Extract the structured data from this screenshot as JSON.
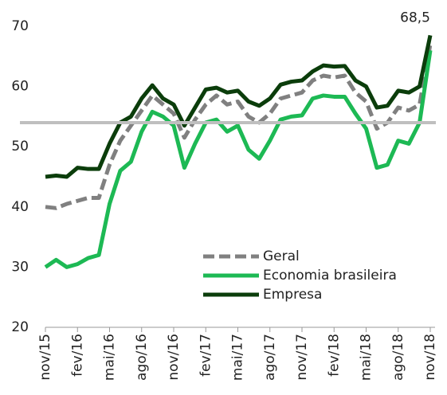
{
  "chart_data": {
    "type": "line",
    "categories": [
      "nov/15",
      null,
      null,
      "fev/16",
      null,
      null,
      "mai/16",
      null,
      null,
      "ago/16",
      null,
      null,
      "nov/16",
      null,
      null,
      "fev/17",
      null,
      null,
      "mai/17",
      null,
      null,
      "ago/17",
      null,
      null,
      "nov/17",
      null,
      null,
      "fev/18",
      null,
      null,
      "mai/18",
      null,
      null,
      "ago/18",
      null,
      null,
      "nov/18"
    ],
    "series": [
      {
        "name": "Geral",
        "color": "#808080",
        "dash": true,
        "values": [
          40,
          39.8,
          40.5,
          41,
          41.5,
          41.5,
          47,
          51,
          53.5,
          56,
          58.5,
          57,
          55.5,
          51.5,
          54.5,
          57,
          58.5,
          57,
          57.5,
          55,
          54,
          55.5,
          58,
          58.5,
          59,
          61,
          61.8,
          61.5,
          61.8,
          59,
          57.5,
          53,
          54,
          56.5,
          56,
          57,
          67
        ]
      },
      {
        "name": "Economia brasileira",
        "color": "#1db954",
        "values": [
          30,
          31.2,
          30,
          30.5,
          31.5,
          32,
          40.5,
          46,
          47.5,
          52.5,
          55.8,
          55,
          53.5,
          46.5,
          50.5,
          54,
          54.5,
          52.5,
          53.5,
          49.5,
          48,
          51,
          54.5,
          55,
          55.2,
          58,
          58.5,
          58.3,
          58.3,
          55.5,
          53,
          46.5,
          47,
          51,
          50.5,
          54,
          66
        ]
      },
      {
        "name": "Empresa",
        "color": "#0b3d0b",
        "values": [
          45,
          45.2,
          45,
          46.5,
          46.3,
          46.3,
          50.5,
          54,
          55,
          58,
          60.2,
          58,
          57,
          53.5,
          56.5,
          59.5,
          59.8,
          59,
          59.3,
          57.5,
          56.8,
          58,
          60.3,
          60.8,
          61,
          62.5,
          63.5,
          63.3,
          63.4,
          61,
          60,
          56.5,
          56.8,
          59.3,
          59,
          60,
          68.5
        ]
      }
    ],
    "annotation": "68,5",
    "reference_line": {
      "value": 54,
      "color": "#bfbfbf"
    },
    "ylim": [
      20,
      70
    ],
    "yticks": [
      20,
      30,
      40,
      50,
      60,
      70
    ],
    "grid": false
  }
}
